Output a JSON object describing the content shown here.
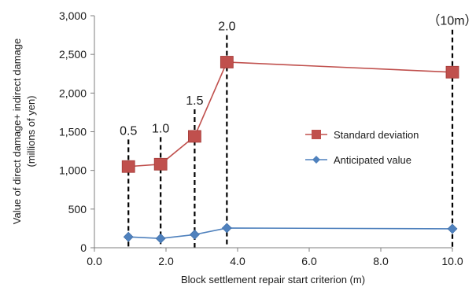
{
  "chart_data": {
    "type": "line",
    "xlabel": "Block settlement repair start criterion (m)",
    "ylabel": "Value of direct damage+ indirect damage",
    "ylabel_unit": "(millions of yen)",
    "xlim": [
      0,
      10
    ],
    "ylim": [
      0,
      3000
    ],
    "x_ticks": [
      "0.0",
      "2.0",
      "4.0",
      "6.0",
      "8.0",
      "10.0"
    ],
    "y_ticks": [
      "0",
      "500",
      "1,000",
      "1,500",
      "2,000",
      "2,500",
      "3,000"
    ],
    "legend_position": "right",
    "grid": false,
    "series": [
      {
        "name": "Standard deviation",
        "color": "#c0504d",
        "marker": "square",
        "x": [
          0.95,
          1.85,
          2.8,
          3.7,
          10.0
        ],
        "y": [
          1050,
          1080,
          1440,
          2400,
          2270
        ]
      },
      {
        "name": "Anticipated value",
        "color": "#4f81bd",
        "marker": "diamond",
        "x": [
          0.95,
          1.85,
          2.8,
          3.7,
          10.0
        ],
        "y": [
          140,
          120,
          170,
          255,
          245
        ]
      }
    ],
    "annotations": [
      {
        "label": "0.5",
        "x": 0.95
      },
      {
        "label": "1.0",
        "x": 1.85
      },
      {
        "label": "1.5",
        "x": 2.8
      },
      {
        "label": "2.0",
        "x": 3.7
      },
      {
        "label": "（10m）",
        "x": 10.0
      }
    ]
  }
}
